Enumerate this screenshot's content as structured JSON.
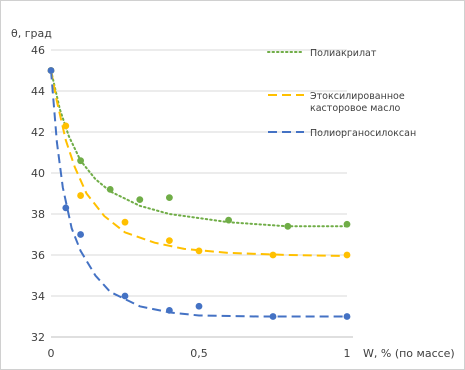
{
  "chart_data": {
    "type": "scatter",
    "ylabel": "θ, град",
    "xlabel": "W, % (по массе)",
    "xlim": [
      0,
      1
    ],
    "ylim": [
      32,
      46
    ],
    "x_ticks": [
      "0",
      "0,5",
      "1"
    ],
    "y_ticks": [
      "32",
      "34",
      "36",
      "38",
      "40",
      "42",
      "44",
      "46"
    ],
    "grid": "horizontal",
    "legend_position": "right",
    "series": [
      {
        "name": "Полиакрилат",
        "color": "#70ad47",
        "line_style": "dotted",
        "points": [
          [
            0,
            45
          ],
          [
            0.1,
            40.6
          ],
          [
            0.2,
            39.2
          ],
          [
            0.3,
            38.7
          ],
          [
            0.4,
            38.8
          ],
          [
            0.6,
            37.7
          ],
          [
            0.8,
            37.4
          ],
          [
            1.0,
            37.5
          ]
        ],
        "trend": [
          [
            0,
            45
          ],
          [
            0.03,
            43.1
          ],
          [
            0.06,
            41.8
          ],
          [
            0.1,
            40.6
          ],
          [
            0.15,
            39.7
          ],
          [
            0.2,
            39.1
          ],
          [
            0.3,
            38.4
          ],
          [
            0.4,
            38.0
          ],
          [
            0.5,
            37.8
          ],
          [
            0.6,
            37.6
          ],
          [
            0.7,
            37.5
          ],
          [
            0.8,
            37.4
          ],
          [
            0.9,
            37.4
          ],
          [
            1.0,
            37.4
          ]
        ]
      },
      {
        "name": "Этоксилированное касторовое масло",
        "color": "#ffc000",
        "line_style": "dashed",
        "points": [
          [
            0,
            45
          ],
          [
            0.05,
            42.3
          ],
          [
            0.1,
            38.9
          ],
          [
            0.25,
            37.6
          ],
          [
            0.4,
            36.7
          ],
          [
            0.5,
            36.2
          ],
          [
            0.75,
            36.0
          ],
          [
            1.0,
            36.0
          ]
        ],
        "trend": [
          [
            0,
            45
          ],
          [
            0.02,
            43.5
          ],
          [
            0.05,
            41.6
          ],
          [
            0.08,
            40.3
          ],
          [
            0.12,
            39.0
          ],
          [
            0.18,
            37.9
          ],
          [
            0.25,
            37.1
          ],
          [
            0.35,
            36.6
          ],
          [
            0.45,
            36.3
          ],
          [
            0.6,
            36.1
          ],
          [
            0.8,
            36.0
          ],
          [
            1.0,
            35.95
          ]
        ]
      },
      {
        "name": "Полиорганосилоксан",
        "color": "#4472c4",
        "line_style": "dashed",
        "points": [
          [
            0,
            45
          ],
          [
            0.05,
            38.3
          ],
          [
            0.1,
            37.0
          ],
          [
            0.25,
            34.0
          ],
          [
            0.4,
            33.3
          ],
          [
            0.5,
            33.5
          ],
          [
            0.75,
            33.0
          ],
          [
            1.0,
            33.0
          ]
        ],
        "trend": [
          [
            0,
            45
          ],
          [
            0.02,
            41.5
          ],
          [
            0.04,
            39.3
          ],
          [
            0.07,
            37.3
          ],
          [
            0.1,
            36.2
          ],
          [
            0.15,
            35.0
          ],
          [
            0.2,
            34.2
          ],
          [
            0.3,
            33.5
          ],
          [
            0.4,
            33.2
          ],
          [
            0.5,
            33.05
          ],
          [
            0.7,
            33.0
          ],
          [
            1.0,
            33.0
          ]
        ]
      }
    ]
  }
}
